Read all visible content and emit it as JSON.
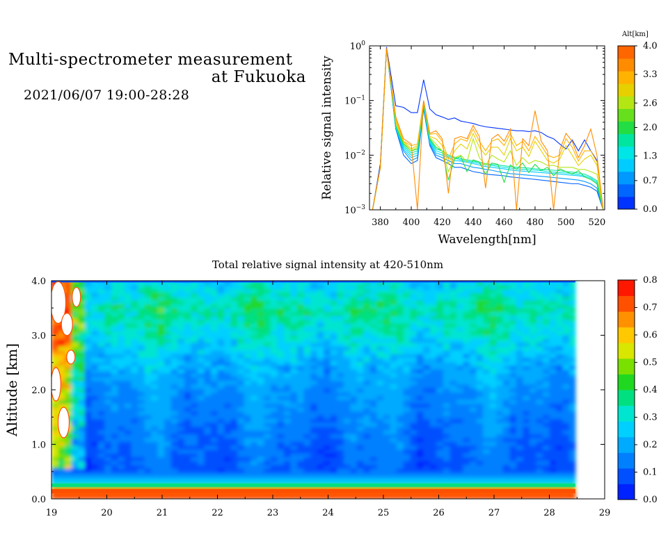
{
  "header": {
    "title_line1": "Multi-spectrometer measurement",
    "title_line2": "at Fukuoka",
    "date_range": "2021/06/07 19:00-28:28"
  },
  "colors": {
    "altitude_scale": [
      "#0033ff",
      "#0066ff",
      "#0099ff",
      "#00ccff",
      "#00e5e5",
      "#00e6a0",
      "#22dd44",
      "#66e01c",
      "#b4e614",
      "#e6d000",
      "#ffb300",
      "#ff8c00",
      "#ff6600"
    ],
    "intensity_scale": [
      "#0022ff",
      "#0050ff",
      "#0080ff",
      "#00aaff",
      "#00d0ff",
      "#00e5d0",
      "#00e080",
      "#20d820",
      "#7ae000",
      "#d8e600",
      "#ffc800",
      "#ff9000",
      "#ff5000",
      "#ff1800"
    ]
  },
  "chart_data": [
    {
      "type": "line",
      "xlabel": "Wavelength[nm]",
      "ylabel": "Relative signal intensity",
      "xlim": [
        373,
        525
      ],
      "ylim": [
        0.001,
        1
      ],
      "y_scale": "log",
      "x_ticks": [
        "380",
        "400",
        "420",
        "440",
        "460",
        "480",
        "500",
        "520"
      ],
      "y_ticks": [
        {
          "base": "10",
          "exp": "0"
        },
        {
          "base": "10",
          "exp": "−1"
        },
        {
          "base": "10",
          "exp": "−2"
        },
        {
          "base": "10",
          "exp": "−3"
        }
      ],
      "x": [
        375,
        380,
        384,
        390,
        395,
        400,
        404,
        408,
        412,
        416,
        420,
        424,
        428,
        432,
        436,
        440,
        444,
        448,
        452,
        456,
        460,
        464,
        468,
        472,
        476,
        480,
        484,
        488,
        492,
        496,
        500,
        504,
        508,
        512,
        516,
        520,
        524
      ],
      "series": [
        {
          "alt": 0.0,
          "values": [
            0.001,
            0.007,
            0.95,
            0.08,
            0.075,
            0.06,
            0.06,
            0.24,
            0.07,
            0.055,
            0.05,
            0.045,
            0.048,
            0.042,
            0.04,
            0.038,
            0.035,
            0.033,
            0.032,
            0.031,
            0.03,
            0.029,
            0.028,
            0.028,
            0.027,
            0.028,
            0.026,
            0.022,
            0.02,
            0.016,
            0.013,
            0.019,
            0.012,
            0.019,
            0.012,
            0.008,
            0.001
          ]
        },
        {
          "alt": 0.3,
          "values": [
            0.001,
            0.006,
            0.9,
            0.03,
            0.01,
            0.007,
            0.008,
            0.07,
            0.015,
            0.009,
            0.008,
            0.007,
            0.006,
            0.006,
            0.0055,
            0.005,
            0.0048,
            0.0045,
            0.0044,
            0.0043,
            0.0042,
            0.004,
            0.0039,
            0.0038,
            0.0037,
            0.0036,
            0.0035,
            0.0034,
            0.0033,
            0.0032,
            0.0031,
            0.003,
            0.003,
            0.0028,
            0.0026,
            0.0022,
            0.001
          ]
        },
        {
          "alt": 0.7,
          "values": [
            0.001,
            0.006,
            0.9,
            0.03,
            0.012,
            0.008,
            0.009,
            0.075,
            0.016,
            0.01,
            0.009,
            0.008,
            0.007,
            0.007,
            0.0065,
            0.006,
            0.0058,
            0.0055,
            0.0053,
            0.005,
            0.0048,
            0.0046,
            0.0045,
            0.0044,
            0.0043,
            0.0042,
            0.0041,
            0.004,
            0.0039,
            0.0038,
            0.0037,
            0.0036,
            0.0035,
            0.0033,
            0.003,
            0.0025,
            0.001
          ]
        },
        {
          "alt": 1.0,
          "values": [
            0.001,
            0.006,
            0.9,
            0.032,
            0.013,
            0.009,
            0.01,
            0.08,
            0.017,
            0.011,
            0.01,
            0.009,
            0.008,
            0.0078,
            0.0074,
            0.007,
            0.0066,
            0.0062,
            0.006,
            0.0058,
            0.0056,
            0.0054,
            0.0052,
            0.0051,
            0.005,
            0.0049,
            0.0048,
            0.0047,
            0.0046,
            0.0045,
            0.0044,
            0.0043,
            0.0042,
            0.004,
            0.0036,
            0.003,
            0.001
          ]
        },
        {
          "alt": 1.3,
          "values": [
            0.001,
            0.006,
            0.9,
            0.033,
            0.014,
            0.01,
            0.011,
            0.085,
            0.018,
            0.012,
            0.011,
            0.0095,
            0.0088,
            0.0082,
            0.0078,
            0.0074,
            0.007,
            0.0067,
            0.0065,
            0.0062,
            0.006,
            0.0058,
            0.0056,
            0.0055,
            0.0054,
            0.0053,
            0.0052,
            0.005,
            0.0049,
            0.0048,
            0.0047,
            0.0046,
            0.0044,
            0.0042,
            0.0038,
            0.0032,
            0.001
          ]
        },
        {
          "alt": 1.6,
          "values": [
            0.001,
            0.006,
            0.9,
            0.034,
            0.015,
            0.011,
            0.012,
            0.09,
            0.019,
            0.013,
            0.012,
            0.01,
            0.0092,
            0.0086,
            0.0082,
            0.0078,
            0.0074,
            0.007,
            0.0068,
            0.0066,
            0.0064,
            0.0062,
            0.006,
            0.0059,
            0.0058,
            0.0056,
            0.0055,
            0.0054,
            0.0053,
            0.0052,
            0.005,
            0.0049,
            0.0047,
            0.0045,
            0.004,
            0.0034,
            0.001
          ]
        },
        {
          "alt": 2.0,
          "values": [
            0.001,
            0.006,
            0.9,
            0.035,
            0.016,
            0.012,
            0.013,
            0.09,
            0.02,
            0.014,
            0.012,
            0.0035,
            0.0085,
            0.0095,
            0.005,
            0.0082,
            0.0075,
            0.0045,
            0.0072,
            0.0068,
            0.0032,
            0.0066,
            0.0055,
            0.0072,
            0.0048,
            0.0068,
            0.0052,
            0.006,
            0.0042,
            0.0056,
            0.005,
            0.0045,
            0.0052,
            0.004,
            0.0036,
            0.003,
            0.001
          ]
        },
        {
          "alt": 2.6,
          "values": [
            0.001,
            0.006,
            0.9,
            0.04,
            0.017,
            0.012,
            0.014,
            0.095,
            0.021,
            0.016,
            0.012,
            0.005,
            0.009,
            0.01,
            0.0075,
            0.02,
            0.009,
            0.0065,
            0.01,
            0.0085,
            0.0075,
            0.012,
            0.0065,
            0.009,
            0.007,
            0.008,
            0.0075,
            0.0065,
            0.0065,
            0.006,
            0.006,
            0.006,
            0.0055,
            0.0055,
            0.005,
            0.0045,
            0.001
          ]
        },
        {
          "alt": 3.0,
          "values": [
            0.001,
            0.006,
            0.9,
            0.04,
            0.018,
            0.013,
            0.015,
            0.095,
            0.022,
            0.02,
            0.015,
            0.007,
            0.012,
            0.016,
            0.013,
            0.025,
            0.014,
            0.01,
            0.014,
            0.014,
            0.01,
            0.02,
            0.012,
            0.014,
            0.0095,
            0.018,
            0.012,
            0.008,
            0.0072,
            0.0085,
            0.015,
            0.01,
            0.0065,
            0.0085,
            0.01,
            0.0065,
            0.001
          ]
        },
        {
          "alt": 3.4,
          "values": [
            0.001,
            0.006,
            0.9,
            0.045,
            0.018,
            0.015,
            0.016,
            0.1,
            0.024,
            0.025,
            0.018,
            0.0085,
            0.016,
            0.02,
            0.018,
            0.03,
            0.018,
            0.012,
            0.018,
            0.02,
            0.015,
            0.025,
            0.015,
            0.018,
            0.012,
            0.022,
            0.015,
            0.01,
            0.009,
            0.01,
            0.02,
            0.014,
            0.0078,
            0.012,
            0.012,
            0.0075,
            0.001
          ]
        },
        {
          "alt": 3.8,
          "values": [
            0.001,
            0.006,
            0.9,
            0.05,
            0.02,
            0.016,
            0.001,
            0.1,
            0.025,
            0.028,
            0.02,
            0.002,
            0.02,
            0.022,
            0.02,
            0.035,
            0.022,
            0.0025,
            0.02,
            0.024,
            0.018,
            0.03,
            0.001,
            0.02,
            0.015,
            0.065,
            0.018,
            0.012,
            0.001,
            0.0125,
            0.025,
            0.018,
            0.009,
            0.015,
            0.03,
            0.01,
            0.001
          ]
        }
      ],
      "colorbar": {
        "title": "Alt[km]",
        "labels": [
          "4.0",
          "3.3",
          "2.6",
          "2.0",
          "1.3",
          "0.7",
          "0.0"
        ],
        "range": [
          0.0,
          4.0
        ]
      }
    },
    {
      "type": "heatmap",
      "title": "Total relative signal intensity at 420-510nm",
      "ylabel": "Altitude [km]",
      "xlabel": "",
      "x_ticks": [
        "19",
        "20",
        "21",
        "22",
        "23",
        "24",
        "25",
        "26",
        "27",
        "28",
        "29"
      ],
      "y_ticks": [
        "4.0",
        "3.0",
        "2.0",
        "1.0",
        "0.0"
      ],
      "xlim": [
        19,
        29
      ],
      "ylim": [
        0.0,
        4.0
      ],
      "data_extent_x": [
        19.0,
        28.47
      ],
      "colorbar": {
        "labels": [
          "0.8",
          "0.7",
          "0.6",
          "0.5",
          "0.4",
          "0.3",
          "0.2",
          "0.1",
          "0.0"
        ],
        "range": [
          0.0,
          0.8
        ]
      },
      "altitude_profile": [
        {
          "alt": 0.15,
          "value": 0.72
        },
        {
          "alt": 0.3,
          "value": 0.3
        },
        {
          "alt": 0.5,
          "value": 0.1
        },
        {
          "alt": 1.0,
          "value": 0.12
        },
        {
          "alt": 1.5,
          "value": 0.15
        },
        {
          "alt": 2.0,
          "value": 0.17
        },
        {
          "alt": 2.5,
          "value": 0.22
        },
        {
          "alt": 3.0,
          "value": 0.3
        },
        {
          "alt": 3.5,
          "value": 0.36
        },
        {
          "alt": 3.9,
          "value": 0.28
        }
      ]
    }
  ]
}
